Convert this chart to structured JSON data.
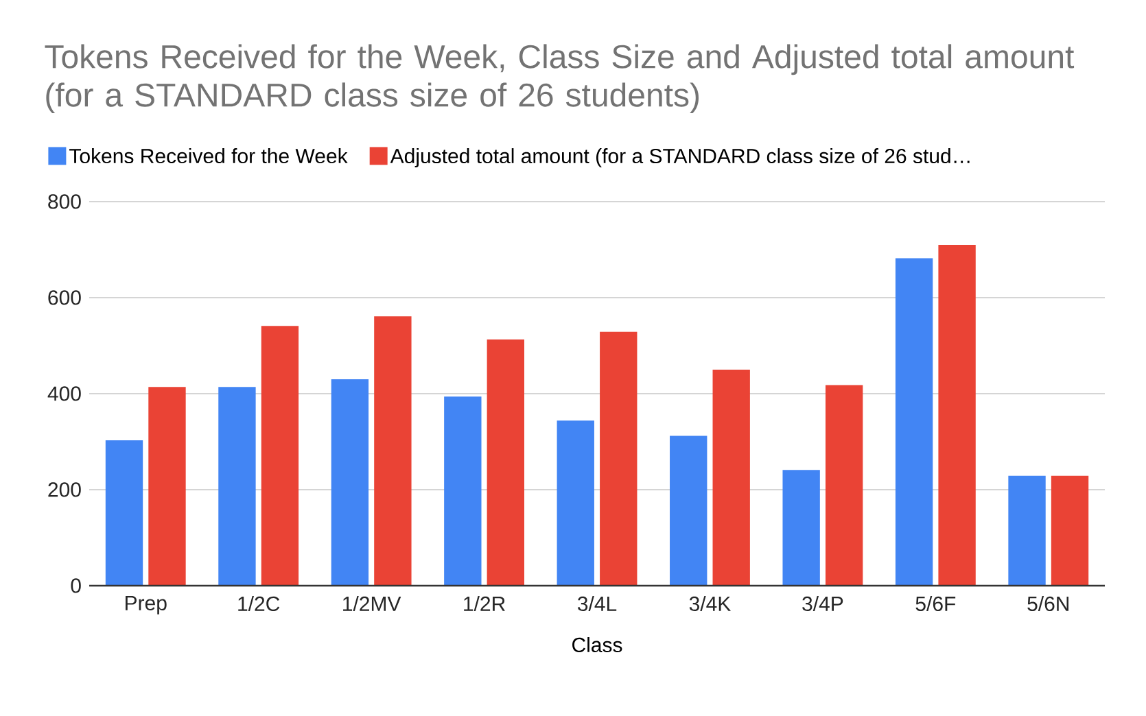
{
  "chart_data": {
    "type": "bar",
    "title": "Tokens Received for the Week, Class Size and Adjusted total amount (for a STANDARD class size of 26 students)",
    "xlabel": "Class",
    "categories": [
      "Prep",
      "1/2C",
      "1/2MV",
      "1/2R",
      "3/4L",
      "3/4K",
      "3/4P",
      "5/6F",
      "5/6N"
    ],
    "series": [
      {
        "name": "Tokens Received for the Week",
        "color": "#4285f4",
        "values": [
          303,
          414,
          430,
          394,
          344,
          312,
          241,
          682,
          229
        ]
      },
      {
        "name": "Adjusted total amount (for a STANDARD class size of 26 stud…",
        "color": "#ea4335",
        "values": [
          414,
          541,
          561,
          513,
          529,
          450,
          418,
          710,
          229
        ]
      }
    ],
    "ylim": [
      0,
      800
    ],
    "yticks": [
      0,
      200,
      400,
      600,
      800
    ],
    "grid": "y",
    "legend": "top left"
  }
}
